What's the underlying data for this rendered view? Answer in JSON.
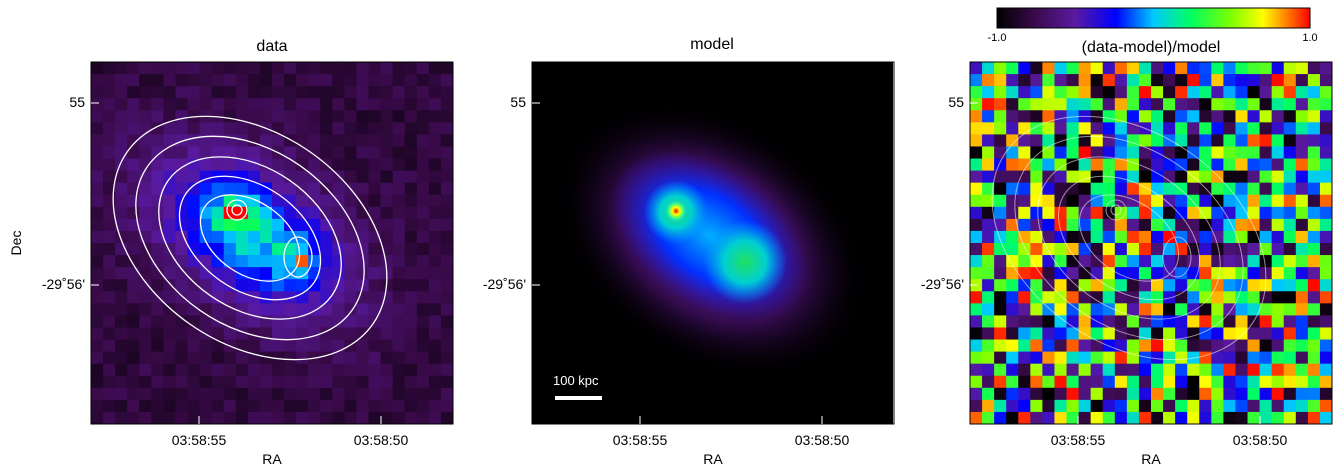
{
  "panels": [
    {
      "title": "data",
      "x_label": "RA",
      "y_label": "Dec",
      "x_ticks": [
        "03:58:55",
        "03:58:50"
      ],
      "y_ticks": [
        "55",
        "-29˚56'"
      ]
    },
    {
      "title": "model",
      "x_label": "RA",
      "x_ticks": [
        "03:58:55",
        "03:58:50"
      ],
      "y_ticks": [
        "55",
        "-29˚56'"
      ],
      "scale_bar": "100 kpc"
    },
    {
      "title": "(data-model)/model",
      "x_label": "RA",
      "x_ticks": [
        "03:58:55",
        "03:58:50"
      ],
      "y_ticks": [
        "55",
        "-29˚56'"
      ]
    }
  ],
  "colorbar": {
    "min_label": "-1.0",
    "max_label": "1.0"
  }
}
